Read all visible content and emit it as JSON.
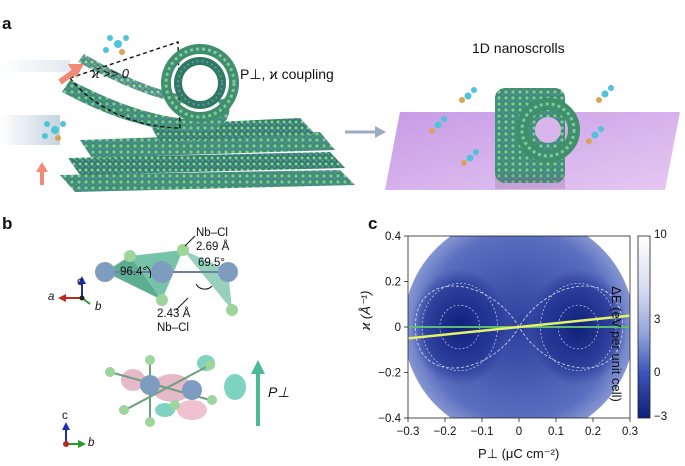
{
  "panel_a": {
    "letter": "a",
    "kappa_label": "ϰ >> 0",
    "coupling_label": "P⊥, ϰ coupling",
    "nanoscroll_title": "1D nanoscrolls"
  },
  "panel_b": {
    "letter": "b",
    "bond_top": "Nb–Cl",
    "bond_top_len": "2.69 Å",
    "bond_bottom_len": "2.43 Å",
    "bond_bottom": "Nb–Cl",
    "angle_left": "96.4°",
    "angle_right": "69.5°",
    "polarization": "P⊥",
    "axes_top": {
      "c": "c",
      "a": "a",
      "b": "b"
    },
    "axes_bottom": {
      "c": "c",
      "b": "b"
    }
  },
  "panel_c": {
    "letter": "c",
    "colorbar_label": "ΔE (eV per unit cell)",
    "colorbar_ticks": [
      "10",
      "3",
      "0",
      "−3"
    ]
  },
  "chart_data": {
    "type": "heatmap",
    "xlabel": "P⊥ (μC cm⁻²)",
    "ylabel": "ϰ (Å⁻¹)",
    "xlim": [
      -0.3,
      0.3
    ],
    "ylim": [
      -0.4,
      0.4
    ],
    "x_ticks": [
      "−0.3",
      "−0.2",
      "−0.1",
      "0",
      "0.1",
      "0.2",
      "0.3"
    ],
    "y_ticks": [
      "0.4",
      "0.2",
      "0",
      "−0.2",
      "−0.4"
    ],
    "minima": [
      {
        "x": -0.16,
        "y": 0.0
      },
      {
        "x": 0.16,
        "y": 0.0
      }
    ],
    "line_coupling": {
      "x": [
        -0.3,
        0.3
      ],
      "y": [
        -0.05,
        0.05
      ]
    },
    "line_zero": {
      "x": [
        -0.3,
        0.3
      ],
      "y": [
        0.0,
        0.0
      ]
    },
    "colormap": {
      "low": "#0e1f78",
      "high": "#ffffff"
    },
    "colorbar_range": [
      -3,
      10
    ]
  }
}
